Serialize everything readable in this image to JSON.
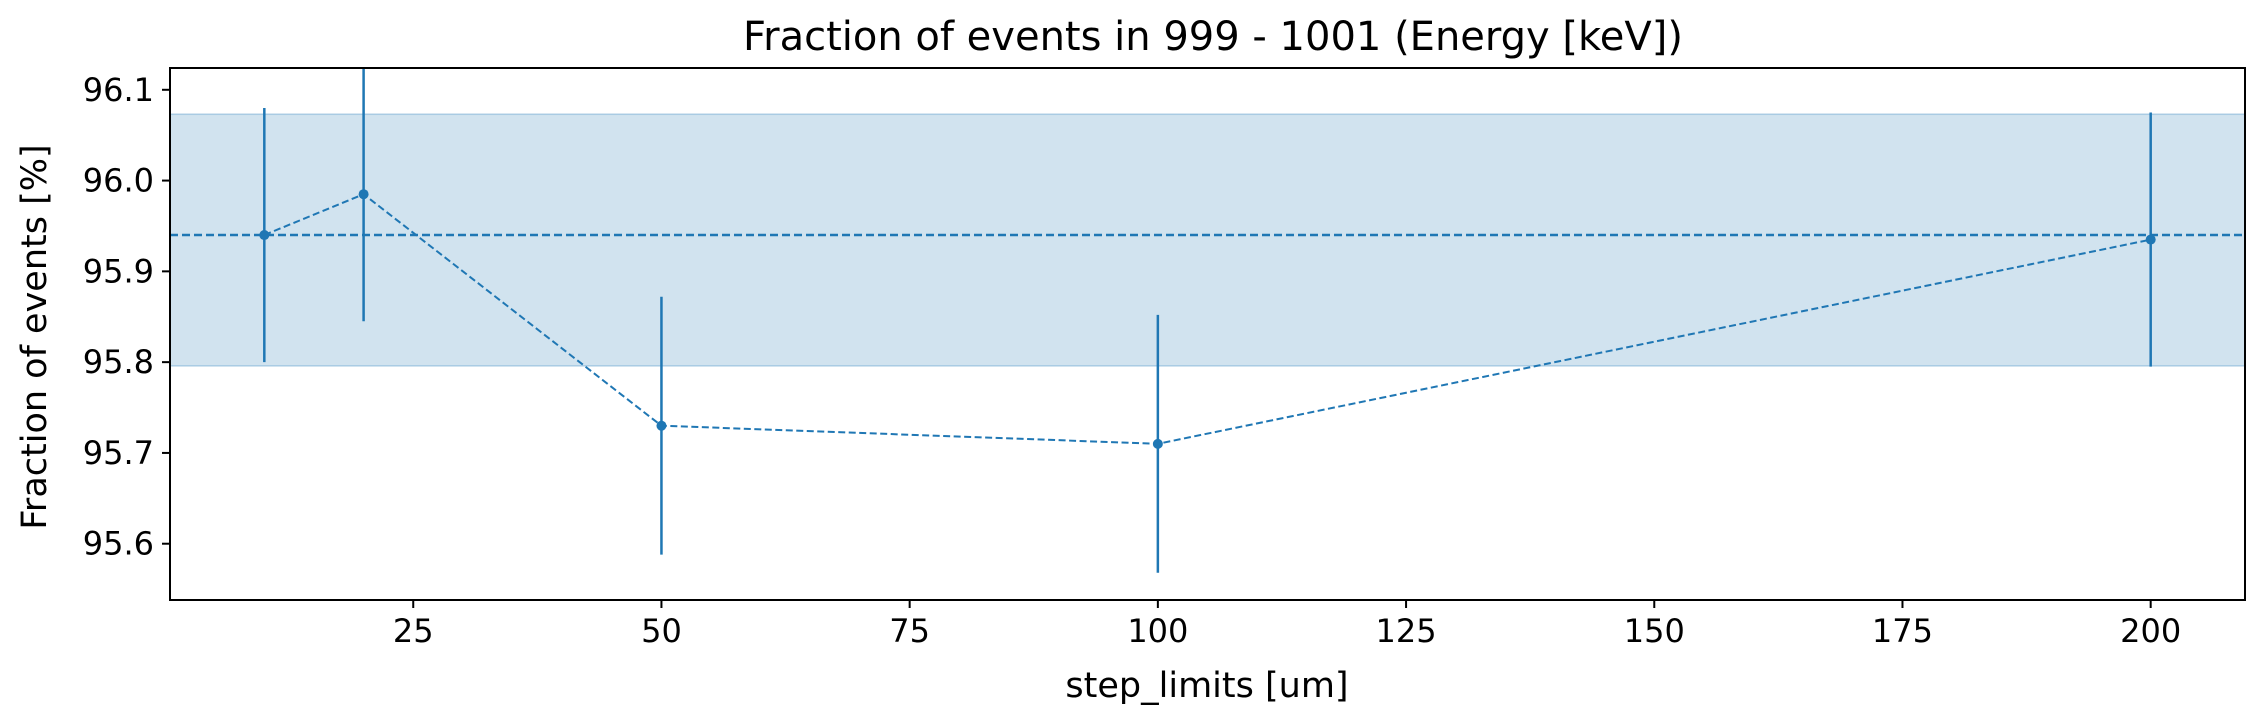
{
  "chart_data": {
    "type": "line",
    "title": "Fraction of events in 999 - 1001 (Energy [keV])",
    "xlabel": "step_limits [um]",
    "ylabel": "Fraction of events [%]",
    "xlim": [
      0.5,
      209.5
    ],
    "ylim": [
      95.538,
      96.124
    ],
    "xticks": [
      25,
      50,
      75,
      100,
      125,
      150,
      175,
      200
    ],
    "yticks": [
      95.6,
      95.7,
      95.8,
      95.9,
      96.0,
      96.1
    ],
    "xtick_labels": [
      "25",
      "50",
      "75",
      "100",
      "125",
      "150",
      "175",
      "200"
    ],
    "ytick_labels": [
      "95.6",
      "95.7",
      "95.8",
      "95.9",
      "96.0",
      "96.1"
    ],
    "grid": false,
    "series": [
      {
        "x": [
          10,
          20,
          50,
          100,
          200
        ],
        "y": [
          95.94,
          95.985,
          95.73,
          95.71,
          95.935
        ],
        "yerr": [
          0.14,
          0.14,
          0.142,
          0.142,
          0.14
        ],
        "color": "#1f77b4",
        "linestyle": "dashed",
        "marker": "circle"
      }
    ],
    "reference": {
      "value": 95.94,
      "band": [
        95.796,
        96.073
      ],
      "color": "#1f77b4",
      "band_color": "#d1e3ef",
      "band_edge_color": "#a9cbe3"
    }
  }
}
